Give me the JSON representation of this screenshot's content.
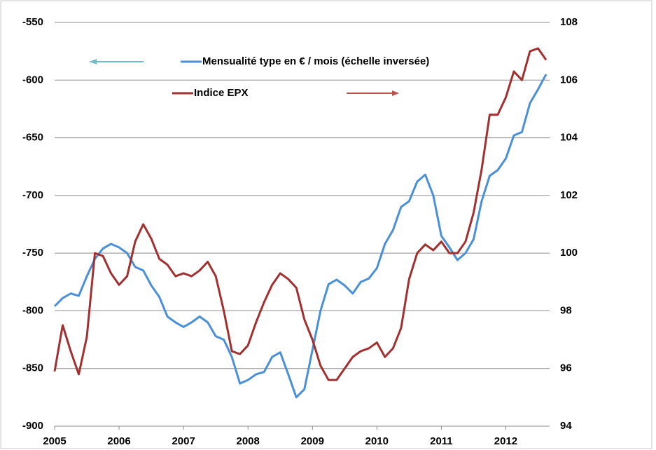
{
  "chart_data": {
    "type": "line",
    "x": [
      2005,
      2005.125,
      2005.25,
      2005.375,
      2005.5,
      2005.625,
      2005.75,
      2005.875,
      2006,
      2006.125,
      2006.25,
      2006.375,
      2006.5,
      2006.625,
      2006.75,
      2006.875,
      2007,
      2007.125,
      2007.25,
      2007.375,
      2007.5,
      2007.625,
      2007.75,
      2007.875,
      2008,
      2008.125,
      2008.25,
      2008.375,
      2008.5,
      2008.625,
      2008.75,
      2008.875,
      2009,
      2009.125,
      2009.25,
      2009.375,
      2009.5,
      2009.625,
      2009.75,
      2009.875,
      2010,
      2010.125,
      2010.25,
      2010.375,
      2010.5,
      2010.625,
      2010.75,
      2010.875,
      2011,
      2011.125,
      2011.25,
      2011.375,
      2011.5,
      2011.625,
      2011.75,
      2011.875,
      2012,
      2012.125,
      2012.25,
      2012.375,
      2012.5,
      2012.625
    ],
    "xlim": [
      2005,
      2012.625
    ],
    "xticks": [
      2005,
      2006,
      2007,
      2008,
      2009,
      2010,
      2011,
      2012
    ],
    "ylim": [
      -900,
      -550
    ],
    "yticks": [
      -550,
      -600,
      -650,
      -700,
      -750,
      -800,
      -850,
      -900
    ],
    "y2lim": [
      94,
      108
    ],
    "y2ticks": [
      108,
      106,
      104,
      102,
      100,
      98,
      96,
      94
    ],
    "grid": true,
    "legend": "top",
    "series": [
      {
        "name": "Mensualité type en € / mois (échelle inversée)",
        "color": "#4a8fd8",
        "values": [
          -796,
          -789,
          -785,
          -787,
          -770,
          -755,
          -746,
          -742,
          -745,
          -750,
          -762,
          -765,
          -778,
          -788,
          -805,
          -810,
          -814,
          -810,
          -805,
          -810,
          -822,
          -825,
          -840,
          -863,
          -860,
          -855,
          -853,
          -840,
          -836,
          -855,
          -875,
          -868,
          -834,
          -800,
          -777,
          -773,
          -778,
          -785,
          -775,
          -772,
          -763,
          -742,
          -730,
          -710,
          -705,
          -688,
          -682,
          -700,
          -735,
          -745,
          -756,
          -750,
          -738,
          -705,
          -683,
          -678,
          -668,
          -648,
          -645,
          -620,
          -608,
          -595
        ]
      },
      {
        "name": "Indice EPX",
        "color": "#a33030",
        "axis": "y2",
        "values": [
          95.9,
          97.5,
          96.6,
          95.8,
          97.1,
          100.0,
          99.9,
          99.3,
          98.9,
          99.2,
          100.4,
          101.0,
          100.5,
          99.8,
          99.6,
          99.2,
          99.3,
          99.2,
          99.4,
          99.7,
          99.2,
          98.0,
          96.6,
          96.5,
          96.8,
          97.6,
          98.3,
          98.9,
          99.3,
          99.1,
          98.8,
          97.7,
          97.0,
          96.1,
          95.6,
          95.6,
          96.0,
          96.4,
          96.6,
          96.7,
          96.9,
          96.4,
          96.7,
          97.4,
          99.1,
          100.0,
          100.3,
          100.1,
          100.4,
          100.0,
          100.0,
          100.4,
          101.4,
          102.9,
          104.8,
          104.8,
          105.4,
          106.3,
          106.0,
          107.0,
          107.1,
          106.7
        ]
      }
    ]
  }
}
